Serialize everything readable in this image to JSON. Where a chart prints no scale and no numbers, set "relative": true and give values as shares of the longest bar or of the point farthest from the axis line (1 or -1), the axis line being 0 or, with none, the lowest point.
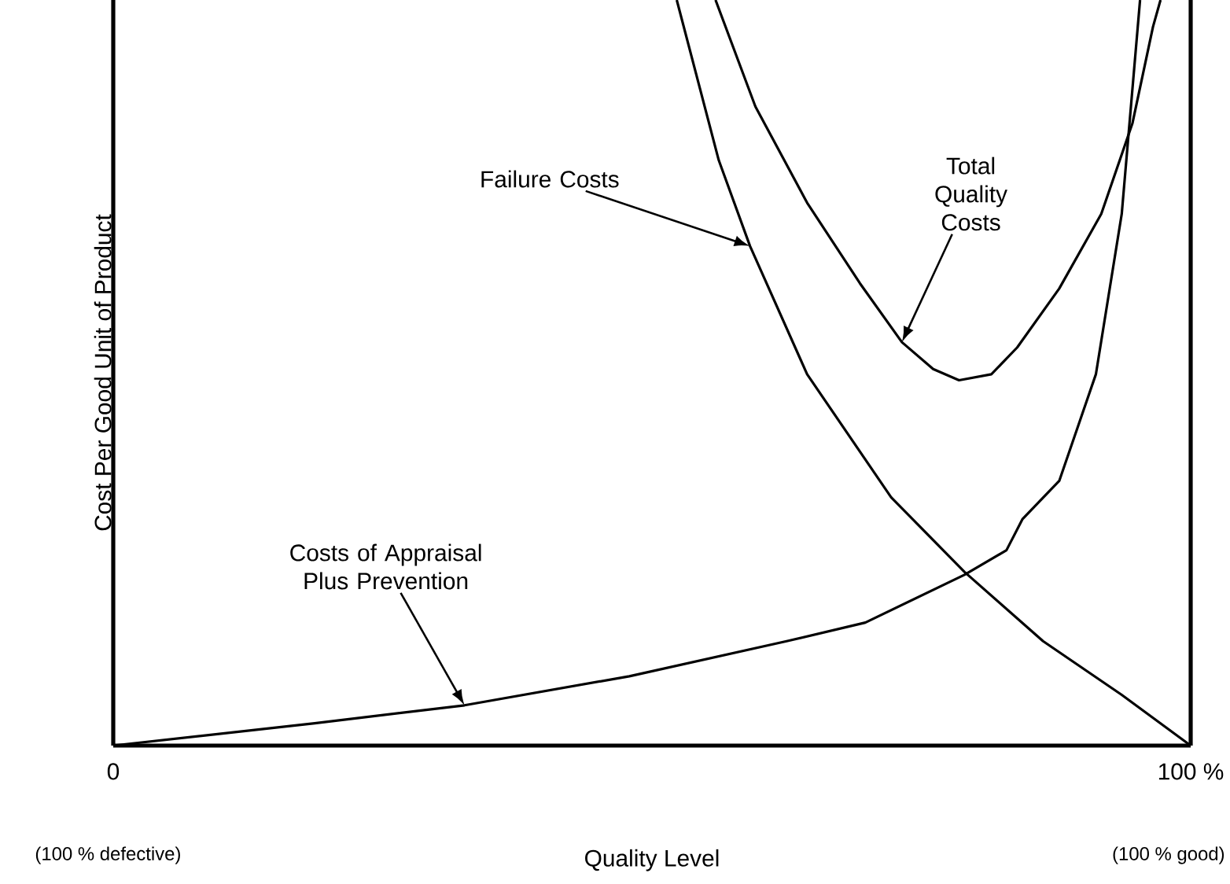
{
  "chart_data": {
    "type": "line",
    "relative": true,
    "xlabel": "Quality Level",
    "ylabel": "Cost Per Good Unit of Product",
    "xlim": [
      0,
      100
    ],
    "xticks": [
      {
        "value": 0,
        "label": "0"
      },
      {
        "value": 100,
        "label": "100 %"
      }
    ],
    "line_style": "solid",
    "annotations": [
      "(100 % defective)",
      "(100 % good)",
      "Failure Costs",
      "Total Quality Costs",
      "Costs of Appraisal Plus Prevention"
    ],
    "series": [
      {
        "color": "#000000",
        "x": [
          52.3,
          56.2,
          59.1,
          64.4,
          72.2,
          79.0,
          86.3,
          93.6,
          100
        ],
        "values": [
          1,
          0.785,
          0.67,
          0.498,
          0.333,
          0.233,
          0.14,
          0.068,
          0
        ]
      },
      {
        "color": "#000000",
        "x": [
          55.9,
          59.6,
          64.4,
          69.3,
          73.2,
          76.1,
          78.5,
          81.5,
          83.9,
          87.8,
          91.7,
          94.6,
          96.5,
          97.2
        ],
        "values": [
          1,
          0.857,
          0.728,
          0.62,
          0.541,
          0.505,
          0.49,
          0.498,
          0.534,
          0.613,
          0.713,
          0.835,
          0.964,
          1
        ]
      },
      {
        "color": "#000000",
        "x": [
          0,
          18.7,
          32.6,
          47.9,
          62.5,
          69.8,
          79.0,
          82.9,
          84.4,
          87.8,
          91.2,
          93.6,
          95.3
        ],
        "values": [
          0,
          0.03,
          0.054,
          0.093,
          0.14,
          0.165,
          0.229,
          0.262,
          0.304,
          0.355,
          0.498,
          0.713,
          1
        ]
      }
    ]
  }
}
